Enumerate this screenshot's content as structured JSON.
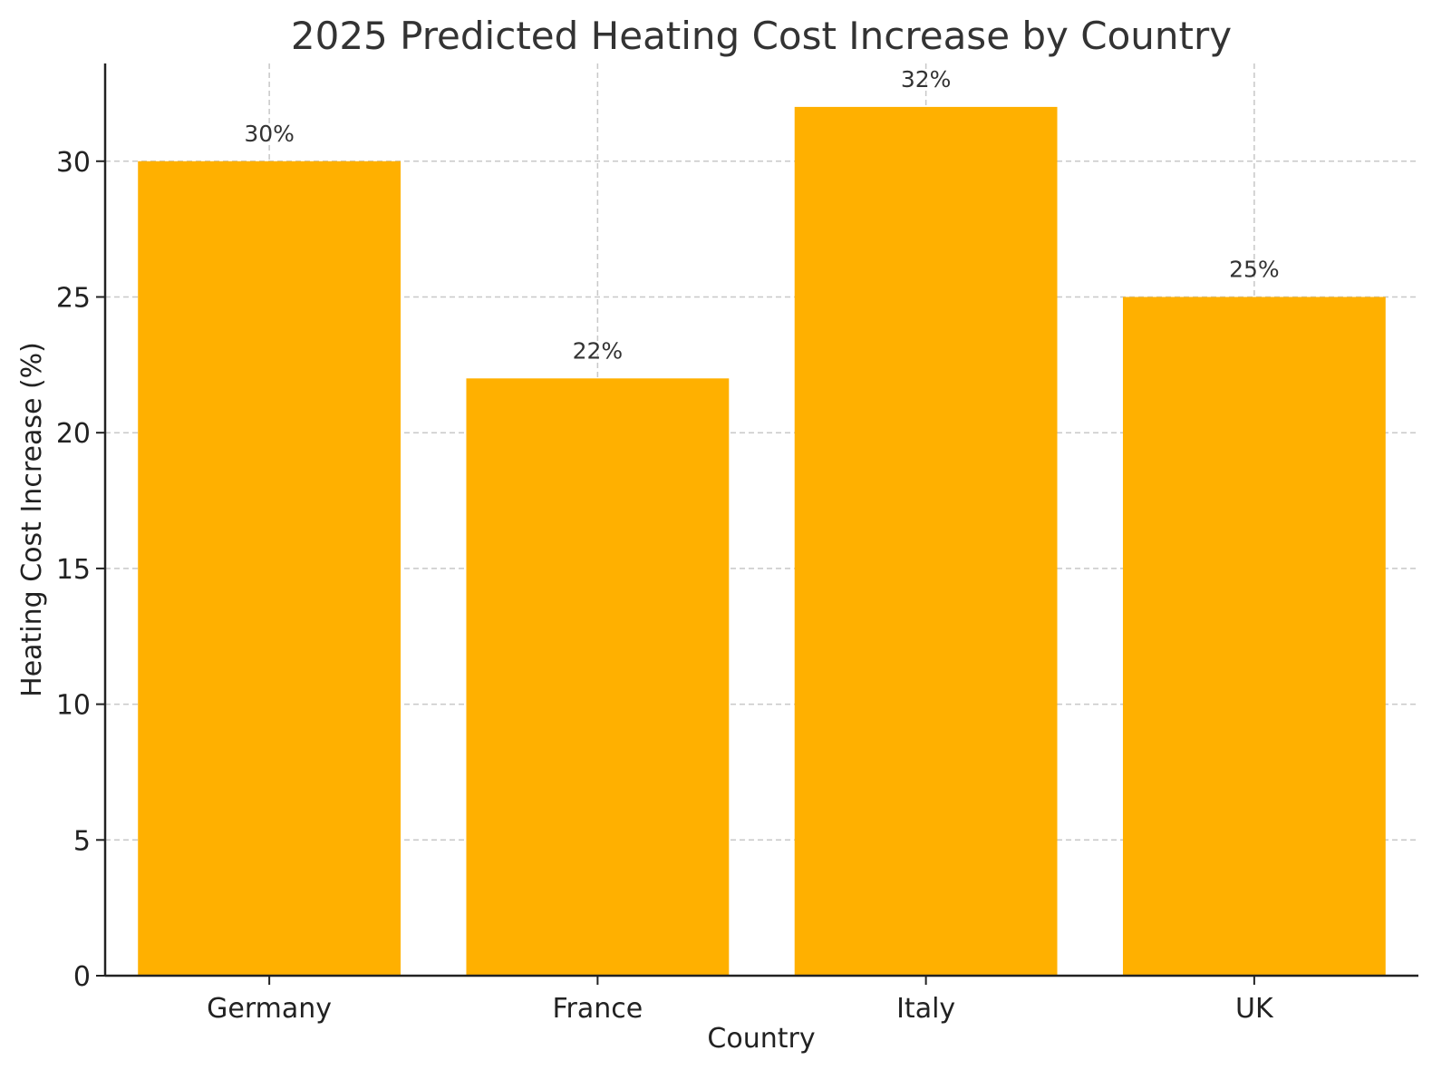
{
  "chart_data": {
    "type": "bar",
    "title": "2025 Predicted Heating Cost Increase by Country",
    "xlabel": "Country",
    "ylabel": "Heating Cost Increase (%)",
    "categories": [
      "Germany",
      "France",
      "Italy",
      "UK"
    ],
    "values": [
      30,
      22,
      32,
      25
    ],
    "data_labels": [
      "30%",
      "22%",
      "32%",
      "25%"
    ],
    "ylim": [
      0,
      33.6
    ],
    "yticks": [
      0,
      5,
      10,
      15,
      20,
      25,
      30
    ],
    "ytick_labels": [
      "0",
      "5",
      "10",
      "15",
      "20",
      "25",
      "30"
    ],
    "grid": true,
    "bar_color": "#FFB000"
  }
}
